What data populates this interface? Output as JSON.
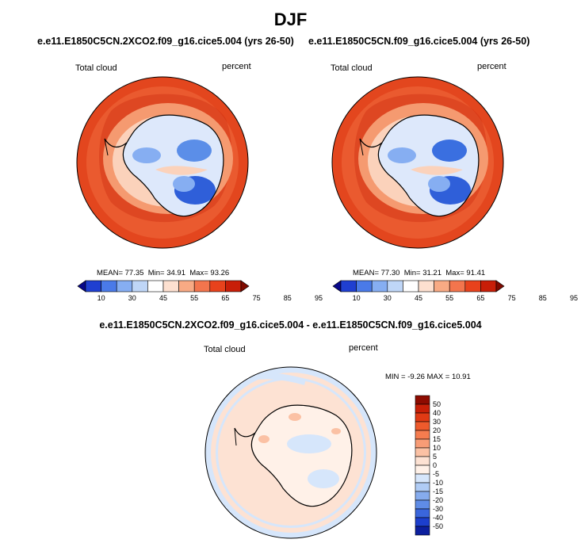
{
  "figure": {
    "season": "DJF"
  },
  "panels": [
    {
      "title": "e.e11.E1850C5CN.2XCO2.f09_g16.cice5.004 (yrs 26-50)",
      "variable": "Total cloud",
      "units": "percent",
      "stats": {
        "mean_label": "MEAN=",
        "mean": "77.35",
        "min_label": "Min=",
        "min": "34.91",
        "max_label": "Max=",
        "max": "93.26"
      }
    },
    {
      "title": "e.e11.E1850C5CN.f09_g16.cice5.004 (yrs 26-50)",
      "variable": "Total cloud",
      "units": "percent",
      "stats": {
        "mean_label": "MEAN=",
        "mean": "77.30",
        "min_label": "Min=",
        "min": "31.21",
        "max_label": "Max=",
        "max": "91.41"
      }
    },
    {
      "title": "e.e11.E1850C5CN.2XCO2.f09_g16.cice5.004 - e.e11.E1850C5CN.f09_g16.cice5.004",
      "variable": "Total cloud",
      "units": "percent",
      "stats": {
        "min_label": "MIN =",
        "min": "-9.26",
        "max_label": "MAX =",
        "max": "10.91"
      }
    }
  ],
  "colorbar_abs": {
    "labels": [
      "10",
      "30",
      "45",
      "55",
      "65",
      "75",
      "85",
      "95"
    ],
    "colors": [
      "#08088a",
      "#1f3fd1",
      "#4a7ae8",
      "#86aef2",
      "#bfd6f7",
      "#ffffff",
      "#fde0d0",
      "#f8aa84",
      "#f3754d",
      "#e8421c",
      "#c81e08",
      "#7f0a00"
    ]
  },
  "colorbar_diff": {
    "labels": [
      "50",
      "40",
      "30",
      "20",
      "15",
      "10",
      "5",
      "0",
      "-5",
      "-10",
      "-15",
      "-20",
      "-30",
      "-40",
      "-50"
    ],
    "colors": [
      "#8e0b00",
      "#c71f07",
      "#e03a14",
      "#ee5a2c",
      "#f57c4f",
      "#f89c76",
      "#fbc1a4",
      "#fde2d3",
      "#fff1e8",
      "#d6e6fb",
      "#b0ccf5",
      "#86acee",
      "#5f8ce6",
      "#3a66dc",
      "#1c3fcd",
      "#0c1f9e"
    ]
  },
  "chart_data": [
    {
      "type": "heatmap",
      "projection": "south polar stereographic",
      "title": "e.e11.E1850C5CN.2XCO2.f09_g16.cice5.004 (yrs 26-50)",
      "variable": "Total cloud",
      "units": "percent",
      "mean": 77.35,
      "min": 34.91,
      "max": 93.26,
      "contour_levels": [
        10,
        20,
        30,
        40,
        45,
        50,
        55,
        60,
        65,
        70,
        75,
        80,
        85,
        90,
        95
      ]
    },
    {
      "type": "heatmap",
      "projection": "south polar stereographic",
      "title": "e.e11.E1850C5CN.f09_g16.cice5.004 (yrs 26-50)",
      "variable": "Total cloud",
      "units": "percent",
      "mean": 77.3,
      "min": 31.21,
      "max": 91.41,
      "contour_levels": [
        10,
        20,
        30,
        40,
        45,
        50,
        55,
        60,
        65,
        70,
        75,
        80,
        85,
        90,
        95
      ]
    },
    {
      "type": "heatmap",
      "projection": "south polar stereographic",
      "title": "e.e11.E1850C5CN.2XCO2.f09_g16.cice5.004 - e.e11.E1850C5CN.f09_g16.cice5.004",
      "variable": "Total cloud",
      "units": "percent",
      "min": -9.26,
      "max": 10.91,
      "contour_levels": [
        -50,
        -40,
        -30,
        -20,
        -15,
        -10,
        -5,
        0,
        5,
        10,
        15,
        20,
        30,
        40,
        50
      ]
    }
  ]
}
